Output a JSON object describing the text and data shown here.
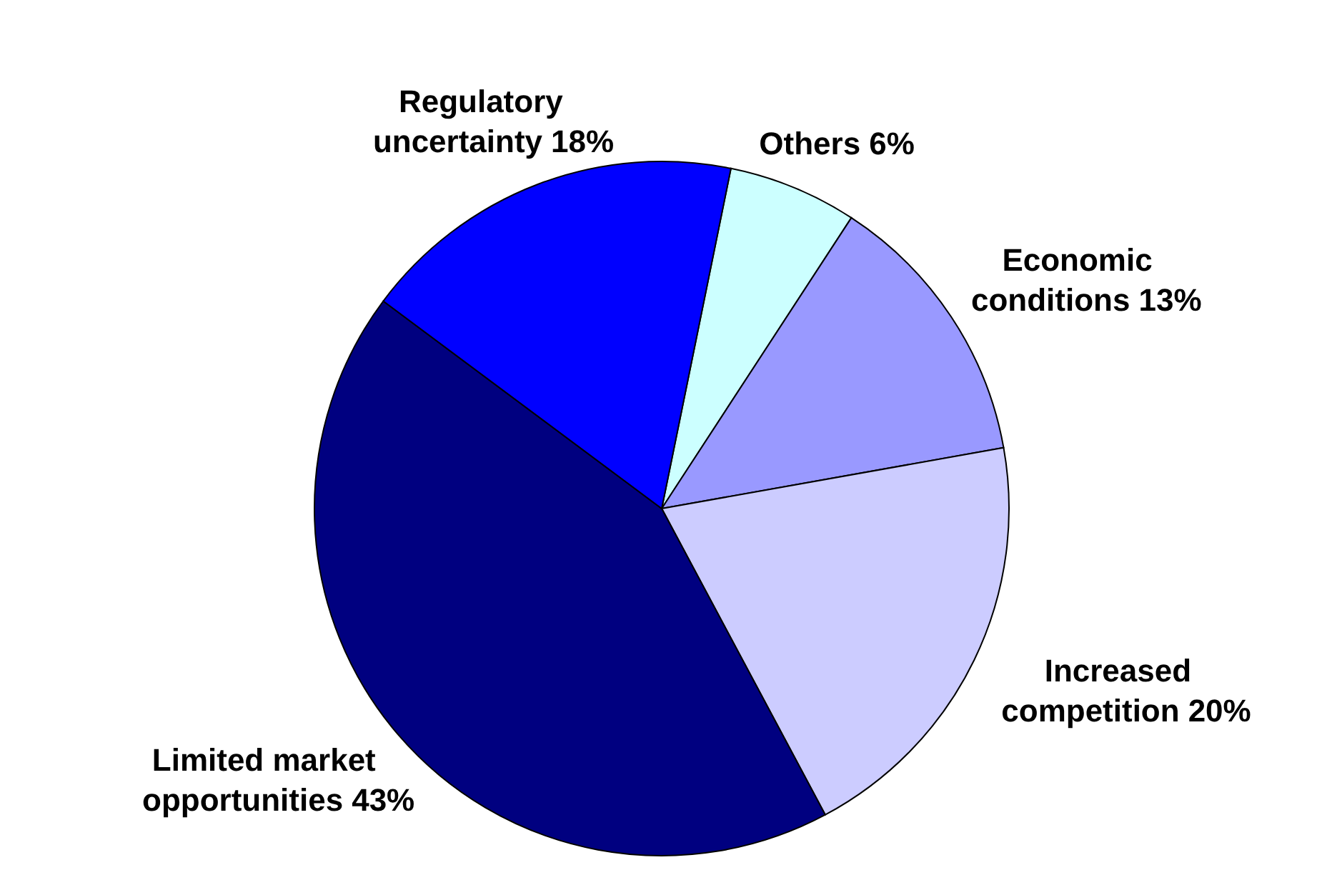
{
  "chart_data": {
    "type": "pie",
    "categories": [
      "Others",
      "Economic conditions",
      "Increased competition",
      "Limited market opportunities",
      "Regulatory uncertainty"
    ],
    "values": [
      6,
      13,
      20,
      43,
      18
    ],
    "colors": [
      "#ccffff",
      "#9999ff",
      "#ccccff",
      "#000080",
      "#0000ff"
    ],
    "value_labels": [
      "6%",
      "13%",
      "20%",
      "43%",
      "18%"
    ]
  }
}
